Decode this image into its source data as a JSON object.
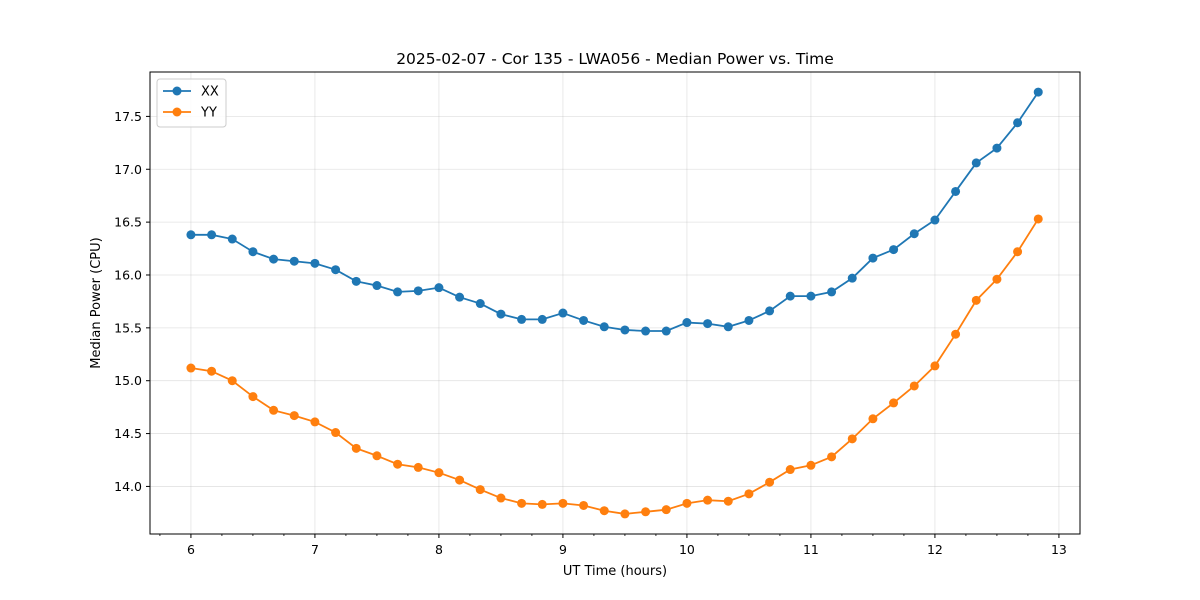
{
  "chart_data": {
    "type": "line",
    "title": "2025-02-07 - Cor 135 - LWA056 - Median Power vs. Time",
    "xlabel": "UT Time (hours)",
    "ylabel": "Median Power (CPU)",
    "xlim": [
      5.67,
      13.17
    ],
    "ylim": [
      13.55,
      17.92
    ],
    "xticks": [
      6,
      7,
      8,
      9,
      10,
      11,
      12,
      13
    ],
    "xtick_labels": [
      "6",
      "7",
      "8",
      "9",
      "10",
      "11",
      "12",
      "13"
    ],
    "yticks": [
      14.0,
      14.5,
      15.0,
      15.5,
      16.0,
      16.5,
      17.0,
      17.5
    ],
    "ytick_labels": [
      "14.0",
      "14.5",
      "15.0",
      "15.5",
      "16.0",
      "16.5",
      "17.0",
      "17.5"
    ],
    "grid": true,
    "legend_position": "top-left",
    "x": [
      6.0,
      6.1667,
      6.3333,
      6.5,
      6.6667,
      6.8333,
      7.0,
      7.1667,
      7.3333,
      7.5,
      7.6667,
      7.8333,
      8.0,
      8.1667,
      8.3333,
      8.5,
      8.6667,
      8.8333,
      9.0,
      9.1667,
      9.3333,
      9.5,
      9.6667,
      9.8333,
      10.0,
      10.1667,
      10.3333,
      10.5,
      10.6667,
      10.8333,
      11.0,
      11.1667,
      11.3333,
      11.5,
      11.6667,
      11.8333,
      12.0,
      12.1667,
      12.3333,
      12.5,
      12.6667,
      12.8333
    ],
    "series": [
      {
        "name": "XX",
        "color": "#1f77b4",
        "values": [
          16.38,
          16.38,
          16.34,
          16.22,
          16.15,
          16.13,
          16.11,
          16.05,
          15.94,
          15.9,
          15.84,
          15.85,
          15.88,
          15.79,
          15.73,
          15.63,
          15.58,
          15.58,
          15.64,
          15.57,
          15.51,
          15.48,
          15.47,
          15.47,
          15.55,
          15.54,
          15.51,
          15.57,
          15.66,
          15.8,
          15.8,
          15.84,
          15.97,
          16.16,
          16.24,
          16.39,
          16.52,
          16.79,
          17.06,
          17.2,
          17.44,
          17.73
        ]
      },
      {
        "name": "YY",
        "color": "#ff7f0e",
        "values": [
          15.12,
          15.09,
          15.0,
          14.85,
          14.72,
          14.67,
          14.61,
          14.51,
          14.36,
          14.29,
          14.21,
          14.18,
          14.13,
          14.06,
          13.97,
          13.89,
          13.84,
          13.83,
          13.84,
          13.82,
          13.77,
          13.74,
          13.76,
          13.78,
          13.84,
          13.87,
          13.86,
          13.93,
          14.04,
          14.16,
          14.2,
          14.28,
          14.45,
          14.64,
          14.79,
          14.95,
          15.14,
          15.44,
          15.76,
          15.96,
          16.22,
          16.53
        ]
      }
    ]
  }
}
